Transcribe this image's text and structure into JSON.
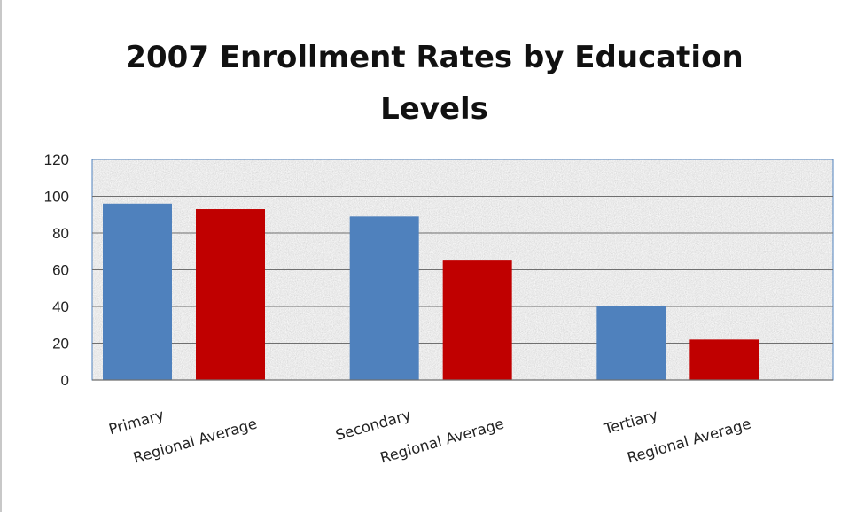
{
  "chart_data": {
    "type": "bar",
    "title": "2007 Enrollment  Rates by Education Levels",
    "categories": [
      "Primary",
      "Regional Average",
      "Secondary",
      "Regional Average",
      "Tertiary",
      "Regional Average"
    ],
    "values": [
      96,
      93,
      89,
      65,
      40,
      22
    ],
    "bar_colors": [
      "#4f81bd",
      "#c00000",
      "#4f81bd",
      "#c00000",
      "#4f81bd",
      "#c00000"
    ],
    "ylim": [
      0,
      120
    ],
    "yticks": [
      "0",
      "20",
      "40",
      "60",
      "80",
      "100",
      "120"
    ],
    "grid": true,
    "legend": "none",
    "plot_background": "textured-gray"
  }
}
